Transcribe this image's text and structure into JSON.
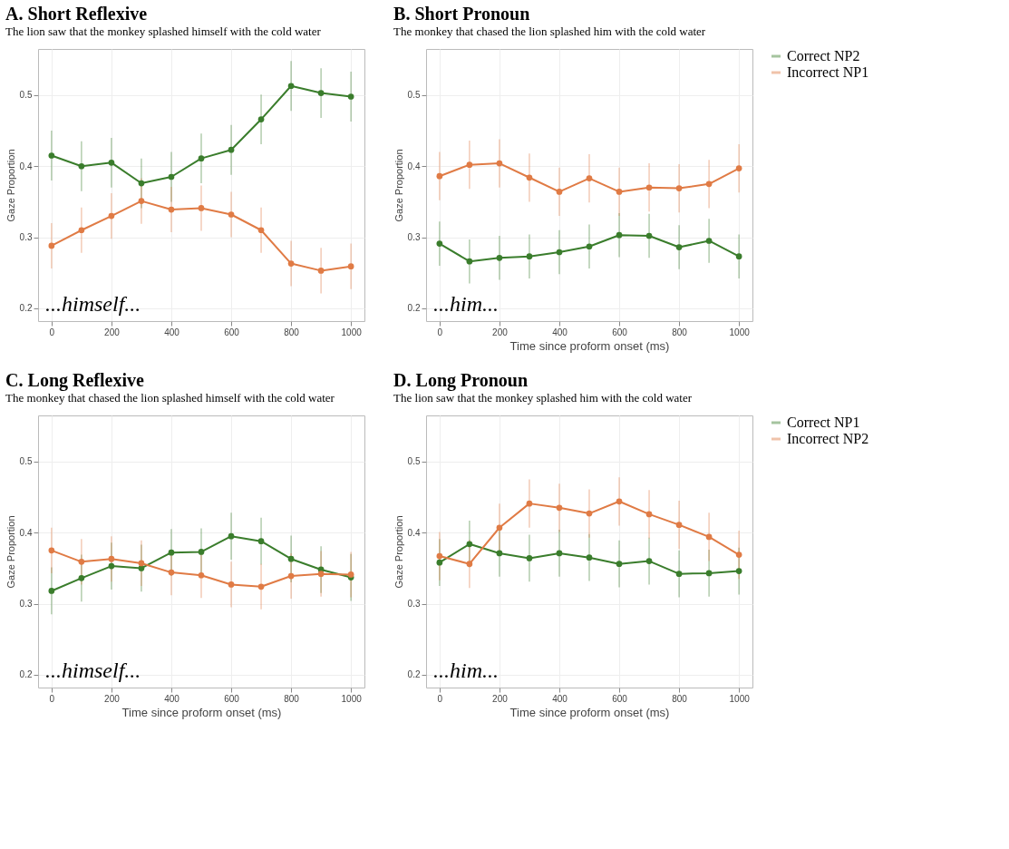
{
  "chart_data": [
    {
      "type": "line",
      "title": "A. Short Reflexive",
      "subtitle": "The lion saw that the monkey splashed himself with the cold water",
      "ylabel": "Gaze Proportion",
      "x": [
        0,
        100,
        200,
        300,
        400,
        500,
        600,
        700,
        800,
        900,
        1000
      ],
      "xlim": [
        -45,
        1045
      ],
      "xticks": [
        0,
        200,
        400,
        600,
        800,
        1000
      ],
      "ylim": [
        0.182,
        0.565
      ],
      "yticks": [
        0.2,
        0.3,
        0.4,
        0.5
      ],
      "grid": true,
      "marker": "circle",
      "annotations": [
        "...himself..."
      ],
      "series": [
        {
          "color": "#3a7d2c",
          "values": [
            0.415,
            0.4,
            0.405,
            0.376,
            0.385,
            0.411,
            0.423,
            0.466,
            0.513,
            0.503,
            0.498
          ],
          "errors": [
            0.035,
            0.035,
            0.035,
            0.035,
            0.035,
            0.035,
            0.035,
            0.035,
            0.035,
            0.035,
            0.035
          ]
        },
        {
          "color": "#e07b45",
          "values": [
            0.288,
            0.31,
            0.33,
            0.351,
            0.339,
            0.341,
            0.332,
            0.31,
            0.263,
            0.253,
            0.259
          ],
          "errors": [
            0.032,
            0.032,
            0.032,
            0.032,
            0.032,
            0.032,
            0.032,
            0.032,
            0.032,
            0.032,
            0.032
          ]
        }
      ]
    },
    {
      "type": "line",
      "title": "B. Short Pronoun",
      "subtitle": "The monkey that chased the lion splashed him with the cold water",
      "xlabel": "Time since proform onset (ms)",
      "ylabel": "Gaze Proportion",
      "x": [
        0,
        100,
        200,
        300,
        400,
        500,
        600,
        700,
        800,
        900,
        1000
      ],
      "xlim": [
        -45,
        1045
      ],
      "xticks": [
        0,
        200,
        400,
        600,
        800,
        1000
      ],
      "ylim": [
        0.182,
        0.565
      ],
      "yticks": [
        0.2,
        0.3,
        0.4,
        0.5
      ],
      "grid": true,
      "marker": "circle",
      "legend": "right",
      "annotations": [
        "...him..."
      ],
      "series": [
        {
          "name": "Correct NP2",
          "color": "#3a7d2c",
          "values": [
            0.291,
            0.266,
            0.271,
            0.273,
            0.279,
            0.287,
            0.303,
            0.302,
            0.286,
            0.295,
            0.273
          ],
          "errors": [
            0.031,
            0.031,
            0.031,
            0.031,
            0.031,
            0.031,
            0.031,
            0.031,
            0.031,
            0.031,
            0.031
          ]
        },
        {
          "name": "Incorrect NP1",
          "color": "#e07b45",
          "values": [
            0.386,
            0.402,
            0.404,
            0.384,
            0.364,
            0.383,
            0.364,
            0.37,
            0.369,
            0.375,
            0.397
          ],
          "errors": [
            0.034,
            0.034,
            0.034,
            0.034,
            0.034,
            0.034,
            0.034,
            0.034,
            0.034,
            0.034,
            0.034
          ]
        }
      ]
    },
    {
      "type": "line",
      "title": "C. Long  Reflexive",
      "subtitle": "The monkey that chased the lion splashed himself with the cold water",
      "xlabel": "Time since proform onset (ms)",
      "ylabel": "Gaze Proportion",
      "x": [
        0,
        100,
        200,
        300,
        400,
        500,
        600,
        700,
        800,
        900,
        1000
      ],
      "xlim": [
        -45,
        1045
      ],
      "xticks": [
        0,
        200,
        400,
        600,
        800,
        1000
      ],
      "ylim": [
        0.182,
        0.565
      ],
      "yticks": [
        0.2,
        0.3,
        0.4,
        0.5
      ],
      "grid": true,
      "marker": "circle",
      "annotations": [
        "...himself..."
      ],
      "series": [
        {
          "color": "#3a7d2c",
          "values": [
            0.318,
            0.336,
            0.353,
            0.35,
            0.372,
            0.373,
            0.395,
            0.388,
            0.363,
            0.348,
            0.337
          ],
          "errors": [
            0.033,
            0.033,
            0.033,
            0.033,
            0.033,
            0.033,
            0.033,
            0.033,
            0.033,
            0.033,
            0.033
          ]
        },
        {
          "color": "#e07b45",
          "values": [
            0.375,
            0.359,
            0.363,
            0.357,
            0.344,
            0.34,
            0.327,
            0.324,
            0.339,
            0.342,
            0.341
          ],
          "errors": [
            0.032,
            0.032,
            0.032,
            0.032,
            0.032,
            0.032,
            0.032,
            0.032,
            0.032,
            0.032,
            0.032
          ]
        }
      ]
    },
    {
      "type": "line",
      "title": "D. Long  Pronoun",
      "subtitle": "The lion saw that the monkey splashed him with the cold water",
      "xlabel": "Time since proform onset (ms)",
      "ylabel": "Gaze Proportion",
      "x": [
        0,
        100,
        200,
        300,
        400,
        500,
        600,
        700,
        800,
        900,
        1000
      ],
      "xlim": [
        -45,
        1045
      ],
      "xticks": [
        0,
        200,
        400,
        600,
        800,
        1000
      ],
      "ylim": [
        0.182,
        0.565
      ],
      "yticks": [
        0.2,
        0.3,
        0.4,
        0.5
      ],
      "grid": true,
      "marker": "circle",
      "legend": "right",
      "annotations": [
        "...him..."
      ],
      "series": [
        {
          "name": "Correct NP1",
          "color": "#3a7d2c",
          "values": [
            0.358,
            0.384,
            0.371,
            0.364,
            0.371,
            0.365,
            0.356,
            0.36,
            0.342,
            0.343,
            0.346
          ],
          "errors": [
            0.033,
            0.033,
            0.033,
            0.033,
            0.033,
            0.033,
            0.033,
            0.033,
            0.033,
            0.033,
            0.033
          ]
        },
        {
          "name": "Incorrect NP2",
          "color": "#e07b45",
          "values": [
            0.367,
            0.356,
            0.407,
            0.441,
            0.435,
            0.427,
            0.444,
            0.426,
            0.411,
            0.394,
            0.369
          ],
          "errors": [
            0.034,
            0.034,
            0.034,
            0.034,
            0.034,
            0.034,
            0.034,
            0.034,
            0.034,
            0.034,
            0.034
          ]
        }
      ]
    }
  ]
}
